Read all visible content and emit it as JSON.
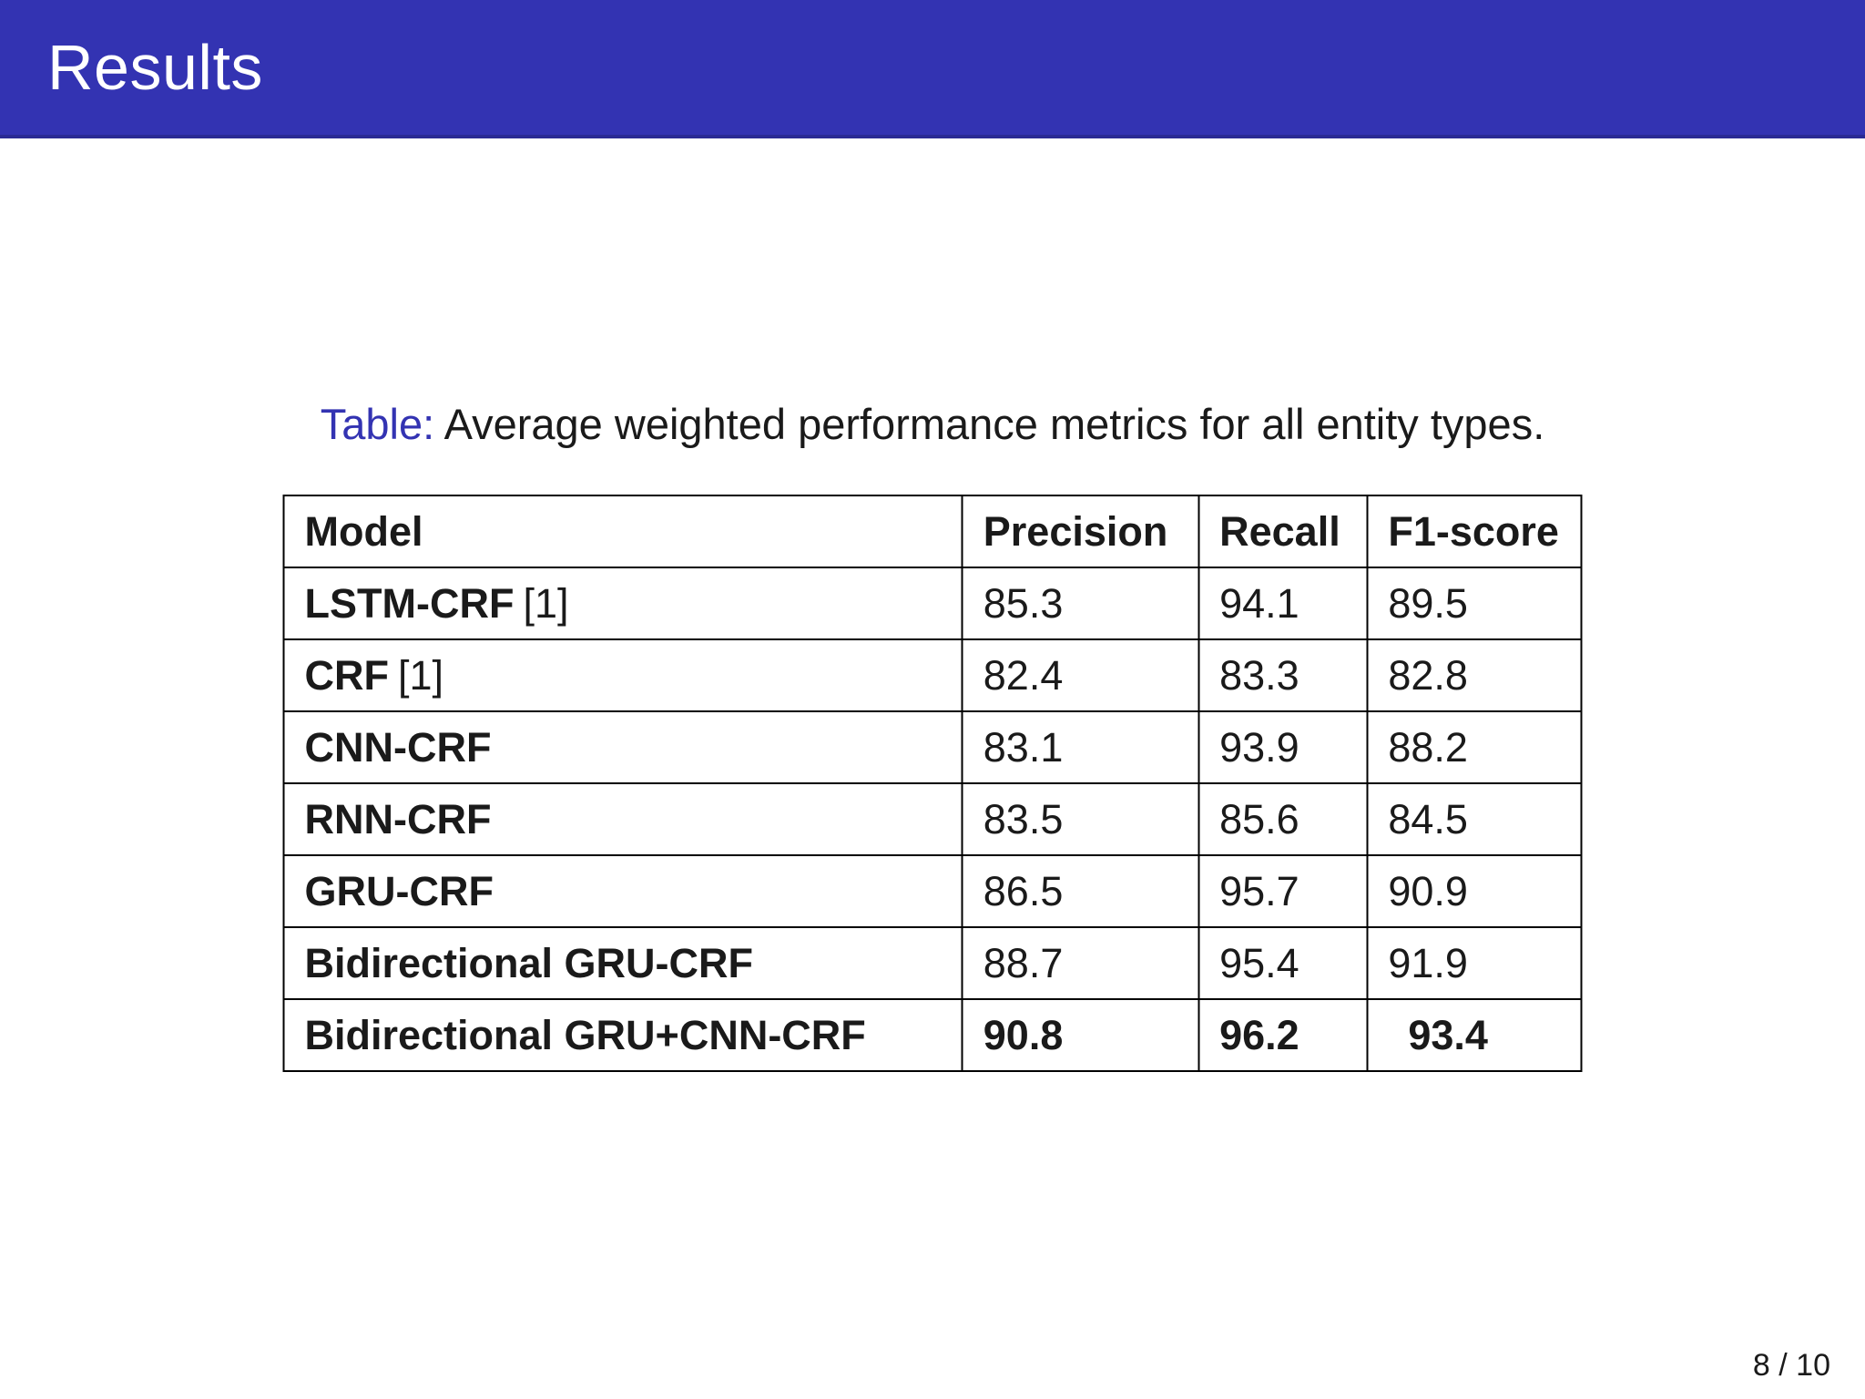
{
  "slide": {
    "title": "Results",
    "page_number": "8 / 10"
  },
  "colors": {
    "header_bar": "#3333b2",
    "header_bar_edge": "#2a2a94",
    "accent": "#3333b2",
    "text": "#1a1a1a",
    "table_border": "#000000"
  },
  "caption": {
    "label": "Table:",
    "text": "Average weighted performance metrics for all entity types."
  },
  "table": {
    "headers": [
      "Model",
      "Precision",
      "Recall",
      "F1-score"
    ],
    "rows": [
      {
        "model": "LSTM-CRF",
        "cite": "[1]",
        "values": [
          "85.3",
          "94.1",
          "89.5"
        ],
        "emphasis": false
      },
      {
        "model": "CRF",
        "cite": "[1]",
        "values": [
          "82.4",
          "83.3",
          "82.8"
        ],
        "emphasis": false
      },
      {
        "model": "CNN-CRF",
        "cite": "",
        "values": [
          "83.1",
          "93.9",
          "88.2"
        ],
        "emphasis": false
      },
      {
        "model": "RNN-CRF",
        "cite": "",
        "values": [
          "83.5",
          "85.6",
          "84.5"
        ],
        "emphasis": false
      },
      {
        "model": "GRU-CRF",
        "cite": "",
        "values": [
          "86.5",
          "95.7",
          "90.9"
        ],
        "emphasis": false
      },
      {
        "model": "Bidirectional GRU-CRF",
        "cite": "",
        "values": [
          "88.7",
          "95.4",
          "91.9"
        ],
        "emphasis": false
      },
      {
        "model": "Bidirectional GRU+CNN-CRF",
        "cite": "",
        "values": [
          "90.8",
          "96.2",
          "93.4"
        ],
        "emphasis": true
      }
    ]
  },
  "chart_data": {
    "type": "table",
    "title": "Average weighted performance metrics for all entity types.",
    "columns": [
      "Model",
      "Precision",
      "Recall",
      "F1-score"
    ],
    "rows": [
      [
        "LSTM-CRF [1]",
        85.3,
        94.1,
        89.5
      ],
      [
        "CRF [1]",
        82.4,
        83.3,
        82.8
      ],
      [
        "CNN-CRF",
        83.1,
        93.9,
        88.2
      ],
      [
        "RNN-CRF",
        83.5,
        85.6,
        84.5
      ],
      [
        "GRU-CRF",
        86.5,
        95.7,
        90.9
      ],
      [
        "Bidirectional GRU-CRF",
        88.7,
        95.4,
        91.9
      ],
      [
        "Bidirectional GRU+CNN-CRF",
        90.8,
        96.2,
        93.4
      ]
    ]
  }
}
